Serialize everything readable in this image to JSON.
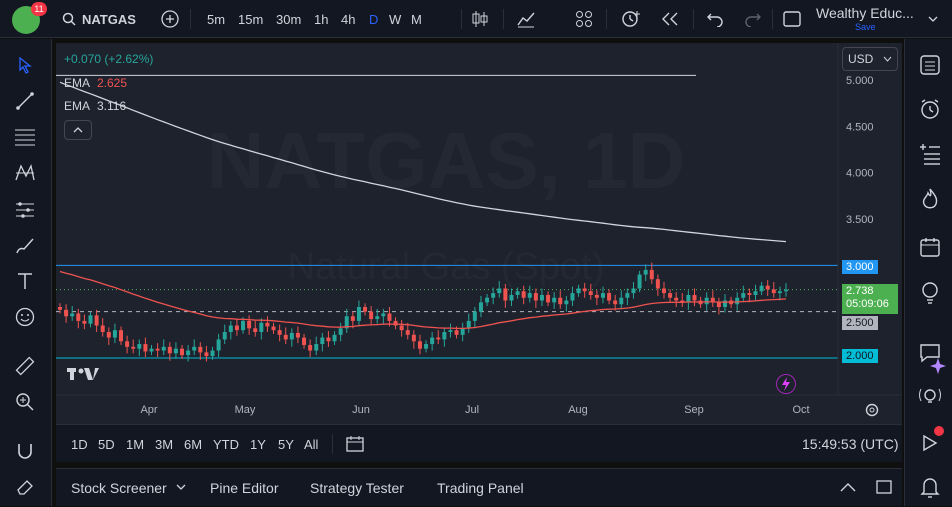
{
  "header": {
    "logo_badge": "11",
    "symbol": "NATGAS",
    "timeframes": [
      "5m",
      "15m",
      "30m",
      "1h",
      "4h",
      "D",
      "W",
      "M"
    ],
    "active_timeframe": "D",
    "layout_name": "Wealthy Educ...",
    "layout_save": "Save"
  },
  "legend": {
    "change": "+0.070 (+2.62%)",
    "ema1_label": "EMA",
    "ema1_value": "2.625",
    "ema2_label": "EMA",
    "ema2_value": "3.116"
  },
  "watermark": {
    "line1": "NATGAS, 1D",
    "line2": "Natural Gas (Spot)"
  },
  "price_axis": {
    "currency": "USD",
    "ticks": [
      "5.000",
      "4.500",
      "4.000",
      "3.500",
      "3.000",
      "2.500",
      "2.000"
    ],
    "label_3000": "3.000",
    "label_current": "2.738",
    "label_countdown": "05:09:06",
    "label_2500": "2.500",
    "label_2000": "2.000"
  },
  "time_axis": {
    "ticks": [
      "Apr",
      "May",
      "Jun",
      "Jul",
      "Aug",
      "Sep",
      "Oct"
    ]
  },
  "ranges": [
    "1D",
    "5D",
    "1M",
    "3M",
    "6M",
    "YTD",
    "1Y",
    "5Y",
    "All"
  ],
  "clock": "15:49:53 (UTC)",
  "bottom_tabs": [
    "Stock Screener",
    "Pine Editor",
    "Strategy Tester",
    "Trading Panel"
  ],
  "colors": {
    "up": "#26a69a",
    "down": "#ef5350",
    "ema_fast": "#ef5350",
    "ema_slow": "#d1d4dc",
    "hline_blue": "#2196f3",
    "hline_cyan": "#00bcd4",
    "current_price": "#4caf50",
    "accent": "#2962ff"
  },
  "chart_data": {
    "type": "candlestick",
    "symbol": "NATGAS",
    "interval": "1D",
    "y_range": [
      1.6,
      5.4
    ],
    "x_ticks": [
      "Apr",
      "May",
      "Jun",
      "Jul",
      "Aug",
      "Sep",
      "Oct"
    ],
    "horizontal_levels": [
      5.05,
      3.0,
      2.5,
      2.0
    ],
    "last_price": 2.738,
    "ema_fast_last": 2.625,
    "ema_slow_last": 3.116,
    "candles_close_approx": [
      2.52,
      2.45,
      2.48,
      2.4,
      2.37,
      2.46,
      2.35,
      2.28,
      2.22,
      2.3,
      2.18,
      2.12,
      2.1,
      2.15,
      2.07,
      2.1,
      2.08,
      2.12,
      2.05,
      2.1,
      2.03,
      2.08,
      2.12,
      2.06,
      2.02,
      2.08,
      2.2,
      2.28,
      2.35,
      2.3,
      2.4,
      2.32,
      2.28,
      2.38,
      2.34,
      2.3,
      2.25,
      2.2,
      2.27,
      2.22,
      2.14,
      2.08,
      2.15,
      2.22,
      2.18,
      2.25,
      2.32,
      2.45,
      2.4,
      2.55,
      2.5,
      2.42,
      2.45,
      2.48,
      2.4,
      2.35,
      2.3,
      2.25,
      2.18,
      2.1,
      2.15,
      2.22,
      2.2,
      2.28,
      2.3,
      2.25,
      2.32,
      2.4,
      2.5,
      2.6,
      2.65,
      2.7,
      2.75,
      2.62,
      2.68,
      2.72,
      2.65,
      2.7,
      2.62,
      2.68,
      2.6,
      2.65,
      2.58,
      2.62,
      2.7,
      2.75,
      2.72,
      2.68,
      2.65,
      2.7,
      2.62,
      2.58,
      2.65,
      2.7,
      2.75,
      2.9,
      2.95,
      2.85,
      2.75,
      2.7,
      2.65,
      2.62,
      2.6,
      2.68,
      2.62,
      2.58,
      2.65,
      2.6,
      2.55,
      2.62,
      2.58,
      2.65,
      2.7,
      2.68,
      2.72,
      2.78,
      2.74,
      2.7,
      2.72,
      2.738
    ]
  }
}
